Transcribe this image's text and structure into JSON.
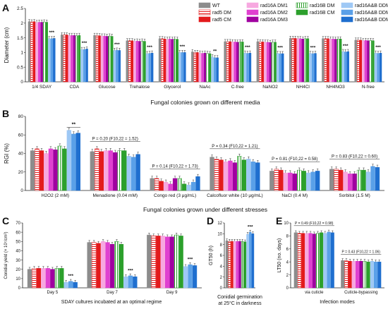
{
  "legend": {
    "entries": [
      {
        "label": "WT",
        "color": "#8c8c8c",
        "pattern": "solid"
      },
      {
        "label": "rad5 DM",
        "color": "#e31a1c",
        "pattern": "hatch"
      },
      {
        "label": "rad5 CM",
        "color": "#e31a1c",
        "pattern": "solid"
      },
      {
        "label": "rad16A DM1",
        "color": "#f7a8e0",
        "pattern": "solid"
      },
      {
        "label": "rad16A DM2",
        "color": "#e040d0",
        "pattern": "solid"
      },
      {
        "label": "rad16A DM3",
        "color": "#a000a0",
        "pattern": "solid"
      },
      {
        "label": "rad16B DM",
        "color": "#2ca02c",
        "pattern": "hatch"
      },
      {
        "label": "rad16B CM",
        "color": "#2ca02c",
        "pattern": "solid"
      },
      {
        "label": "rad16A&B DDM1",
        "color": "#9ec8f5",
        "pattern": "solid"
      },
      {
        "label": "rad16A&B DDM2",
        "color": "#5aa0e8",
        "pattern": "solid"
      },
      {
        "label": "rad16A&B DDM3",
        "color": "#1f6fcf",
        "pattern": "solid"
      }
    ]
  },
  "panels": {
    "A": {
      "letter": "A",
      "xlabel": "Fungal colonies grown on different media"
    },
    "B": {
      "letter": "B",
      "xlabel": "Fungal colonies grown under different stresses"
    },
    "C": {
      "letter": "C",
      "xlabel": "SDAY cultures incubated at an optimal regime"
    },
    "D": {
      "letter": "D",
      "xlabel1": "Conidial germination",
      "xlabel2": "at 25°C in darkness"
    },
    "E": {
      "letter": "E",
      "xlabel": "Infection modes"
    }
  },
  "chart_data": [
    {
      "type": "bar",
      "panel": "A",
      "ylabel": "Diameter (cm)",
      "ylim": [
        0,
        2.5
      ],
      "yticks": [
        0,
        0.5,
        1.0,
        1.5,
        2.0,
        2.5
      ],
      "categories": [
        "1/4 SDAY",
        "CDA",
        "Glucose",
        "Trehalose",
        "Glycerol",
        "NaAc",
        "C-free",
        "NaNO2",
        "NH4Cl",
        "NH4NO3",
        "N-free"
      ],
      "series_values": [
        [
          2.05,
          2.04,
          2.05,
          2.02,
          2.03,
          2.03,
          2.04,
          2.03,
          1.47,
          1.47,
          1.48
        ],
        [
          1.6,
          1.6,
          1.6,
          1.58,
          1.58,
          1.58,
          1.57,
          1.58,
          1.1,
          1.1,
          1.12
        ],
        [
          1.58,
          1.58,
          1.57,
          1.56,
          1.56,
          1.55,
          1.56,
          1.55,
          1.07,
          1.08,
          1.07
        ],
        [
          1.4,
          1.4,
          1.4,
          1.38,
          1.39,
          1.38,
          1.39,
          1.38,
          0.96,
          0.97,
          0.98
        ],
        [
          1.47,
          1.47,
          1.46,
          1.45,
          1.46,
          1.45,
          1.46,
          1.45,
          1.0,
          1.0,
          1.0
        ],
        [
          1.02,
          1.0,
          1.0,
          0.98,
          0.97,
          0.98,
          0.97,
          0.96,
          0.85,
          0.82,
          0.82
        ],
        [
          1.37,
          1.37,
          1.37,
          1.36,
          1.36,
          1.35,
          1.36,
          1.36,
          0.98,
          0.97,
          0.98
        ],
        [
          1.37,
          1.36,
          1.36,
          1.35,
          1.35,
          1.34,
          1.35,
          1.35,
          0.97,
          0.96,
          0.96
        ],
        [
          1.48,
          1.48,
          1.48,
          1.47,
          1.47,
          1.46,
          1.47,
          1.47,
          0.97,
          0.96,
          0.97
        ],
        [
          1.47,
          1.47,
          1.47,
          1.46,
          1.46,
          1.45,
          1.46,
          1.46,
          1.03,
          1.02,
          1.03
        ],
        [
          1.42,
          1.42,
          1.42,
          1.4,
          1.41,
          1.4,
          1.41,
          1.4,
          0.98,
          0.97,
          0.98
        ]
      ],
      "sig": [
        "***",
        "***",
        "***",
        "***",
        "***",
        "**",
        "***",
        "***",
        "***",
        "***",
        "***"
      ]
    },
    {
      "type": "bar",
      "panel": "B",
      "ylabel": "RGI (%)",
      "ylim": [
        0,
        80
      ],
      "yticks": [
        0,
        20,
        40,
        60,
        80
      ],
      "categories": [
        "H2O2 (2 mM)",
        "Menadione (0.04 mM)",
        "Congo red (3 μg/mL)",
        "Calcofluor white (10 μg/mL)",
        "NaCl (0.4 M)",
        "Sorbitol (1.5 M)"
      ],
      "series_values": [
        [
          43,
          45,
          43,
          40,
          45,
          44,
          48,
          45,
          65,
          61,
          62
        ],
        [
          42,
          45,
          42,
          43,
          43,
          41,
          43,
          43,
          37,
          36,
          39
        ],
        [
          13,
          13,
          10,
          9,
          7,
          13,
          13,
          7,
          6,
          9,
          15
        ],
        [
          36,
          34,
          33,
          31,
          32,
          30,
          37,
          33,
          34,
          31,
          30
        ],
        [
          21,
          23,
          22,
          19,
          19,
          18,
          22,
          21,
          19,
          20,
          21
        ],
        [
          23,
          23,
          22,
          20,
          18,
          18,
          22,
          22,
          20,
          26,
          25
        ]
      ],
      "stats": [
        "",
        "P = 0.20 (F10,22 = 1.52)",
        "P = 0.14 (F10,22 = 1.73)",
        "P = 0.34 (F10,22 = 1.21)",
        "P = 0.81 (F10,22 = 0.58)",
        "P = 0.83 (F10,22 = 0.60)"
      ],
      "sig": [
        "**",
        "",
        "",
        "",
        "",
        ""
      ]
    },
    {
      "type": "bar",
      "panel": "C",
      "ylabel": "Conidial yield (× 10⁷/cm²)",
      "ylim": [
        0,
        70
      ],
      "yticks": [
        0,
        10,
        20,
        30,
        40,
        50,
        60,
        70
      ],
      "categories": [
        "Day 5",
        "Day 7",
        "Day 9"
      ],
      "series_values": [
        [
          20,
          21,
          21,
          21,
          21,
          20,
          21,
          21,
          6,
          7,
          6
        ],
        [
          49,
          49,
          48,
          50,
          49,
          47,
          50,
          47,
          12,
          13,
          12
        ],
        [
          57,
          56,
          56,
          56,
          55,
          55,
          57,
          56,
          23,
          25,
          24
        ]
      ],
      "sig": [
        "***",
        "***",
        "***"
      ]
    },
    {
      "type": "bar",
      "panel": "D",
      "ylabel": "GT50 (h)",
      "ylim": [
        0,
        12
      ],
      "yticks": [
        0,
        2,
        4,
        6,
        8,
        10,
        12
      ],
      "categories": [
        ""
      ],
      "series_values": [
        [
          8.7,
          8.6,
          8.6,
          8.6,
          8.6,
          8.6,
          8.6,
          8.5,
          9.9,
          10.3,
          10.0
        ]
      ],
      "sig": [
        "***"
      ]
    },
    {
      "type": "bar",
      "panel": "E",
      "ylabel": "LT50 (no. days)",
      "ylim": [
        0,
        10
      ],
      "yticks": [
        0,
        2,
        4,
        6,
        8,
        10
      ],
      "categories": [
        "via cuticle",
        "Cuticle-bypassing"
      ],
      "series_values": [
        [
          8.5,
          8.4,
          8.4,
          8.4,
          8.4,
          8.3,
          8.4,
          8.5,
          8.4,
          8.6,
          8.5
        ],
        [
          4.2,
          4.2,
          4.1,
          4.1,
          4.1,
          4.1,
          4.1,
          4.0,
          4.1,
          4.0,
          4.0
        ]
      ],
      "stats": [
        "P = 0.49 (F10,22 = 0.98)",
        "P = 0.43 (F10,22 = 1.06)"
      ],
      "sig": [
        "",
        ""
      ]
    }
  ]
}
